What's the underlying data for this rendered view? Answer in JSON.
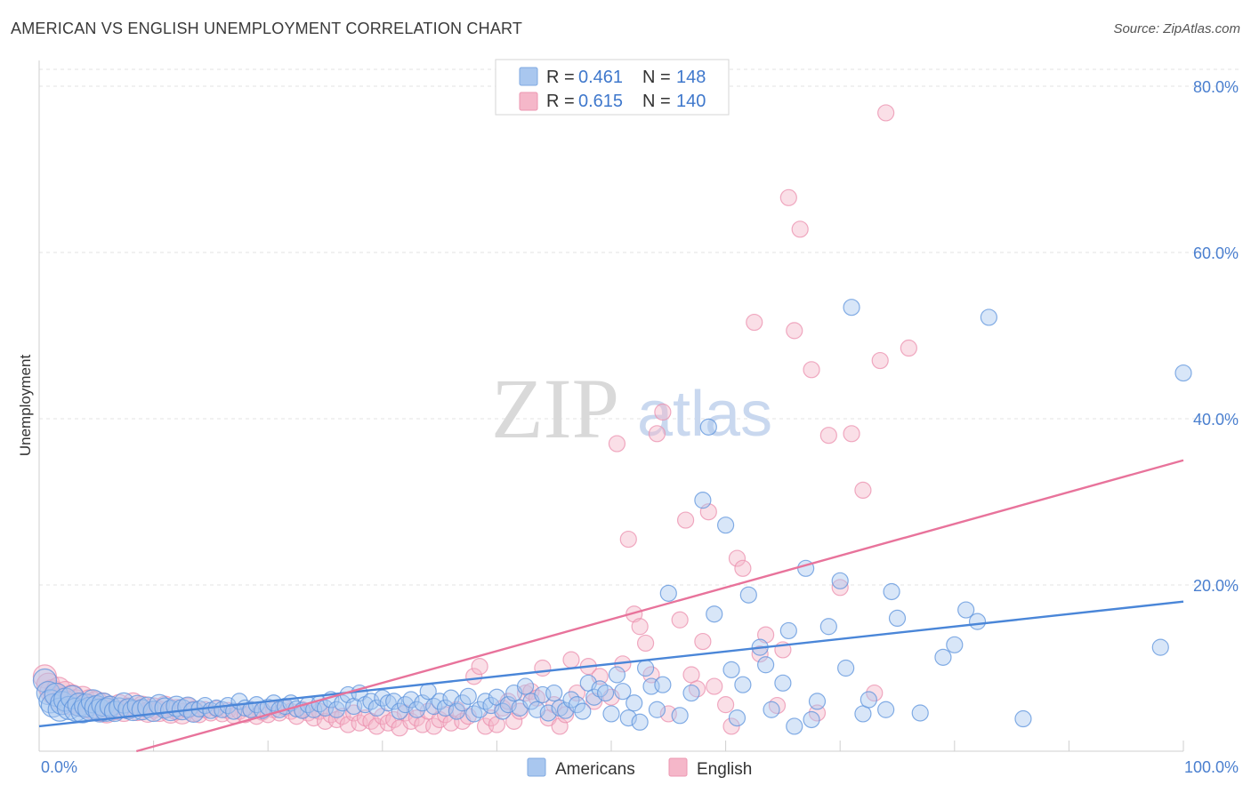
{
  "header": {
    "title": "AMERICAN VS ENGLISH UNEMPLOYMENT CORRELATION CHART",
    "source": "Source: ZipAtlas.com"
  },
  "watermark": {
    "part1": "ZIP",
    "part2": "atlas"
  },
  "legend": {
    "rows": [
      {
        "r_label": "R =",
        "r_value": "0.461",
        "n_label": "N =",
        "n_value": "148",
        "color": "#a9c7ef"
      },
      {
        "r_label": "R =",
        "r_value": "0.615",
        "n_label": "N =",
        "n_value": "140",
        "color": "#f5b7c9"
      }
    ]
  },
  "bottom_legend": [
    {
      "label": "Americans",
      "color": "#a9c7ef"
    },
    {
      "label": "English",
      "color": "#f5b7c9"
    }
  ],
  "chart_data": {
    "type": "scatter",
    "title": "AMERICAN VS ENGLISH UNEMPLOYMENT CORRELATION CHART",
    "xlabel": "",
    "ylabel": "Unemployment",
    "xlim": [
      0,
      100
    ],
    "ylim": [
      0,
      80
    ],
    "x_tick_labels": [
      "0.0%",
      "100.0%"
    ],
    "y_tick_labels": [
      "20.0%",
      "40.0%",
      "60.0%",
      "80.0%"
    ],
    "y_ticks": [
      20,
      40,
      60,
      80
    ],
    "grid": true,
    "legend_position": "top-center",
    "series": [
      {
        "name": "Americans",
        "color": "#4a86d8",
        "fill": "#a9c7ef",
        "R": 0.461,
        "N": 148,
        "trend": [
          [
            0,
            3.0
          ],
          [
            100,
            18.0
          ]
        ],
        "points": [
          [
            0.5,
            8.5
          ],
          [
            0.8,
            7.0
          ],
          [
            1.0,
            6.0
          ],
          [
            1.2,
            5.5
          ],
          [
            1.5,
            6.8
          ],
          [
            1.8,
            5.0
          ],
          [
            2.0,
            5.8
          ],
          [
            2.3,
            6.2
          ],
          [
            2.6,
            5.2
          ],
          [
            2.9,
            6.5
          ],
          [
            3.2,
            5.0
          ],
          [
            3.5,
            5.6
          ],
          [
            3.8,
            4.8
          ],
          [
            4.1,
            5.5
          ],
          [
            4.4,
            5.1
          ],
          [
            4.7,
            6.0
          ],
          [
            5.0,
            5.3
          ],
          [
            5.3,
            4.9
          ],
          [
            5.6,
            5.6
          ],
          [
            5.9,
            5.0
          ],
          [
            6.2,
            5.4
          ],
          [
            6.6,
            4.8
          ],
          [
            7.0,
            5.2
          ],
          [
            7.4,
            5.8
          ],
          [
            7.8,
            5.1
          ],
          [
            8.2,
            4.9
          ],
          [
            8.6,
            5.5
          ],
          [
            9.0,
            5.0
          ],
          [
            9.5,
            5.3
          ],
          [
            10.0,
            4.8
          ],
          [
            10.5,
            5.6
          ],
          [
            11.0,
            5.2
          ],
          [
            11.5,
            4.9
          ],
          [
            12.0,
            5.4
          ],
          [
            12.5,
            5.0
          ],
          [
            13.0,
            5.3
          ],
          [
            13.5,
            4.7
          ],
          [
            14.0,
            5.1
          ],
          [
            14.5,
            5.5
          ],
          [
            15.0,
            4.9
          ],
          [
            15.5,
            5.2
          ],
          [
            16.0,
            5.0
          ],
          [
            16.5,
            5.5
          ],
          [
            17.0,
            4.8
          ],
          [
            17.5,
            6.0
          ],
          [
            18.0,
            5.2
          ],
          [
            18.5,
            5.0
          ],
          [
            19.0,
            5.6
          ],
          [
            19.5,
            4.9
          ],
          [
            20.0,
            5.3
          ],
          [
            20.5,
            5.8
          ],
          [
            21.0,
            5.0
          ],
          [
            21.5,
            5.4
          ],
          [
            22.0,
            5.8
          ],
          [
            22.5,
            5.1
          ],
          [
            23.0,
            4.9
          ],
          [
            23.5,
            5.6
          ],
          [
            24.0,
            5.0
          ],
          [
            24.5,
            5.7
          ],
          [
            25.0,
            5.2
          ],
          [
            25.5,
            6.2
          ],
          [
            26.0,
            5.0
          ],
          [
            26.5,
            5.8
          ],
          [
            27.0,
            6.8
          ],
          [
            27.5,
            5.4
          ],
          [
            28.0,
            7.0
          ],
          [
            28.5,
            5.6
          ],
          [
            29.0,
            6.0
          ],
          [
            29.5,
            5.2
          ],
          [
            30.0,
            6.4
          ],
          [
            30.5,
            5.8
          ],
          [
            31.0,
            6.0
          ],
          [
            31.5,
            4.8
          ],
          [
            32.0,
            5.6
          ],
          [
            32.5,
            6.2
          ],
          [
            33.0,
            5.0
          ],
          [
            33.5,
            5.8
          ],
          [
            34.0,
            7.2
          ],
          [
            34.5,
            5.4
          ],
          [
            35.0,
            6.0
          ],
          [
            35.5,
            5.2
          ],
          [
            36.0,
            6.4
          ],
          [
            36.5,
            4.8
          ],
          [
            37.0,
            5.8
          ],
          [
            37.5,
            6.6
          ],
          [
            38.0,
            4.5
          ],
          [
            38.5,
            5.0
          ],
          [
            39.0,
            6.0
          ],
          [
            39.5,
            5.5
          ],
          [
            40.0,
            6.5
          ],
          [
            40.5,
            4.8
          ],
          [
            41.0,
            5.6
          ],
          [
            41.5,
            7.0
          ],
          [
            42.0,
            5.2
          ],
          [
            42.5,
            7.8
          ],
          [
            43.0,
            6.0
          ],
          [
            43.5,
            5.0
          ],
          [
            44.0,
            6.8
          ],
          [
            44.5,
            4.6
          ],
          [
            45.0,
            7.0
          ],
          [
            45.5,
            5.2
          ],
          [
            46.0,
            4.9
          ],
          [
            46.5,
            6.2
          ],
          [
            47.0,
            5.6
          ],
          [
            47.5,
            4.8
          ],
          [
            48.0,
            8.2
          ],
          [
            48.5,
            6.5
          ],
          [
            49.0,
            7.5
          ],
          [
            49.5,
            7.0
          ],
          [
            50.0,
            4.5
          ],
          [
            50.5,
            9.2
          ],
          [
            51.0,
            7.2
          ],
          [
            51.5,
            4.0
          ],
          [
            52.0,
            5.8
          ],
          [
            52.5,
            3.5
          ],
          [
            53.0,
            10.0
          ],
          [
            53.5,
            7.8
          ],
          [
            54.0,
            5.0
          ],
          [
            54.5,
            8.0
          ],
          [
            55.0,
            19.0
          ],
          [
            56.0,
            4.3
          ],
          [
            57.0,
            7.0
          ],
          [
            58.0,
            30.2
          ],
          [
            58.5,
            39.0
          ],
          [
            59.0,
            16.5
          ],
          [
            60.0,
            27.2
          ],
          [
            60.5,
            9.8
          ],
          [
            61.0,
            4.0
          ],
          [
            61.5,
            8.0
          ],
          [
            62.0,
            18.8
          ],
          [
            63.0,
            12.5
          ],
          [
            63.5,
            10.4
          ],
          [
            64.0,
            5.0
          ],
          [
            65.0,
            8.2
          ],
          [
            65.5,
            14.5
          ],
          [
            66.0,
            3.0
          ],
          [
            67.0,
            22.0
          ],
          [
            67.5,
            3.8
          ],
          [
            68.0,
            6.0
          ],
          [
            69.0,
            15.0
          ],
          [
            70.0,
            20.5
          ],
          [
            70.5,
            10.0
          ],
          [
            71.0,
            53.4
          ],
          [
            72.0,
            4.5
          ],
          [
            72.5,
            6.2
          ],
          [
            74.0,
            5.0
          ],
          [
            74.5,
            19.2
          ],
          [
            75.0,
            16.0
          ],
          [
            77.0,
            4.6
          ],
          [
            79.0,
            11.3
          ],
          [
            80.0,
            12.8
          ],
          [
            81.0,
            17.0
          ],
          [
            82.0,
            15.6
          ],
          [
            83.0,
            52.2
          ],
          [
            86.0,
            3.9
          ],
          [
            98.0,
            12.5
          ],
          [
            100.0,
            45.5
          ]
        ]
      },
      {
        "name": "English",
        "color": "#e8739b",
        "fill": "#f5b7c9",
        "R": 0.615,
        "N": 140,
        "trend": [
          [
            8.5,
            0
          ],
          [
            100,
            35.0
          ]
        ],
        "points": [
          [
            0.5,
            9.0
          ],
          [
            0.8,
            8.0
          ],
          [
            1.1,
            7.2
          ],
          [
            1.4,
            6.8
          ],
          [
            1.7,
            7.5
          ],
          [
            2.0,
            6.2
          ],
          [
            2.3,
            7.0
          ],
          [
            2.6,
            5.8
          ],
          [
            2.9,
            6.6
          ],
          [
            3.2,
            6.0
          ],
          [
            3.5,
            5.6
          ],
          [
            3.8,
            6.4
          ],
          [
            4.1,
            5.4
          ],
          [
            4.4,
            6.0
          ],
          [
            4.7,
            5.2
          ],
          [
            5.0,
            5.8
          ],
          [
            5.3,
            5.0
          ],
          [
            5.6,
            5.6
          ],
          [
            5.9,
            4.8
          ],
          [
            6.2,
            5.4
          ],
          [
            6.6,
            5.0
          ],
          [
            7.0,
            5.6
          ],
          [
            7.4,
            4.8
          ],
          [
            7.8,
            5.2
          ],
          [
            8.2,
            5.8
          ],
          [
            8.6,
            4.9
          ],
          [
            9.0,
            5.4
          ],
          [
            9.5,
            4.7
          ],
          [
            10.0,
            5.2
          ],
          [
            10.5,
            4.8
          ],
          [
            11.0,
            5.4
          ],
          [
            11.5,
            4.6
          ],
          [
            12.0,
            5.0
          ],
          [
            12.5,
            4.5
          ],
          [
            13.0,
            5.2
          ],
          [
            13.5,
            4.8
          ],
          [
            14.0,
            4.4
          ],
          [
            14.5,
            5.0
          ],
          [
            15.0,
            4.6
          ],
          [
            15.5,
            5.1
          ],
          [
            16.0,
            4.5
          ],
          [
            16.5,
            4.9
          ],
          [
            17.0,
            4.3
          ],
          [
            17.5,
            4.8
          ],
          [
            18.0,
            4.4
          ],
          [
            18.5,
            5.0
          ],
          [
            19.0,
            4.2
          ],
          [
            19.5,
            4.7
          ],
          [
            20.0,
            4.4
          ],
          [
            20.5,
            5.0
          ],
          [
            21.0,
            4.6
          ],
          [
            21.5,
            5.2
          ],
          [
            22.0,
            4.8
          ],
          [
            22.5,
            4.2
          ],
          [
            23.0,
            5.0
          ],
          [
            23.5,
            4.6
          ],
          [
            24.0,
            4.0
          ],
          [
            24.5,
            4.8
          ],
          [
            25.0,
            3.6
          ],
          [
            25.5,
            4.4
          ],
          [
            26.0,
            3.8
          ],
          [
            26.5,
            4.2
          ],
          [
            27.0,
            3.2
          ],
          [
            27.5,
            4.6
          ],
          [
            28.0,
            3.4
          ],
          [
            28.5,
            4.0
          ],
          [
            29.0,
            3.6
          ],
          [
            29.5,
            3.0
          ],
          [
            30.0,
            4.2
          ],
          [
            30.5,
            3.4
          ],
          [
            31.0,
            3.8
          ],
          [
            31.5,
            2.8
          ],
          [
            32.0,
            4.6
          ],
          [
            32.5,
            3.6
          ],
          [
            33.0,
            4.0
          ],
          [
            33.5,
            3.2
          ],
          [
            34.0,
            4.8
          ],
          [
            34.5,
            3.0
          ],
          [
            35.0,
            3.8
          ],
          [
            35.5,
            4.4
          ],
          [
            36.0,
            3.4
          ],
          [
            36.5,
            5.0
          ],
          [
            37.0,
            3.6
          ],
          [
            37.5,
            4.2
          ],
          [
            38.0,
            9.0
          ],
          [
            38.5,
            10.2
          ],
          [
            39.0,
            3.0
          ],
          [
            39.5,
            4.0
          ],
          [
            40.0,
            3.2
          ],
          [
            40.5,
            5.2
          ],
          [
            41.0,
            6.0
          ],
          [
            41.5,
            3.6
          ],
          [
            42.0,
            4.8
          ],
          [
            42.5,
            7.0
          ],
          [
            43.0,
            7.2
          ],
          [
            43.5,
            6.4
          ],
          [
            44.0,
            10.0
          ],
          [
            44.5,
            4.0
          ],
          [
            45.0,
            5.6
          ],
          [
            45.5,
            3.0
          ],
          [
            46.0,
            4.4
          ],
          [
            46.5,
            11.0
          ],
          [
            47.0,
            7.0
          ],
          [
            48.0,
            10.2
          ],
          [
            48.5,
            6.0
          ],
          [
            49.0,
            9.0
          ],
          [
            50.0,
            6.5
          ],
          [
            50.5,
            37.0
          ],
          [
            51.0,
            10.5
          ],
          [
            51.5,
            25.5
          ],
          [
            52.0,
            16.5
          ],
          [
            52.5,
            15.0
          ],
          [
            53.0,
            13.0
          ],
          [
            53.5,
            9.2
          ],
          [
            54.0,
            38.2
          ],
          [
            54.5,
            40.8
          ],
          [
            55.0,
            4.5
          ],
          [
            56.0,
            15.8
          ],
          [
            56.5,
            27.8
          ],
          [
            57.0,
            9.2
          ],
          [
            57.5,
            7.5
          ],
          [
            58.0,
            13.2
          ],
          [
            58.5,
            28.8
          ],
          [
            59.0,
            7.8
          ],
          [
            60.0,
            5.6
          ],
          [
            60.5,
            3.0
          ],
          [
            61.0,
            23.2
          ],
          [
            61.5,
            22.0
          ],
          [
            62.5,
            51.6
          ],
          [
            63.0,
            11.7
          ],
          [
            63.5,
            14.0
          ],
          [
            64.5,
            5.5
          ],
          [
            65.0,
            12.2
          ],
          [
            65.5,
            66.6
          ],
          [
            66.0,
            50.6
          ],
          [
            66.5,
            62.8
          ],
          [
            67.5,
            45.9
          ],
          [
            68.0,
            4.6
          ],
          [
            69.0,
            38.0
          ],
          [
            70.0,
            19.7
          ],
          [
            71.0,
            38.2
          ],
          [
            72.0,
            31.4
          ],
          [
            73.0,
            7.0
          ],
          [
            73.5,
            47.0
          ],
          [
            74.0,
            76.8
          ],
          [
            76.0,
            48.5
          ]
        ]
      }
    ]
  }
}
